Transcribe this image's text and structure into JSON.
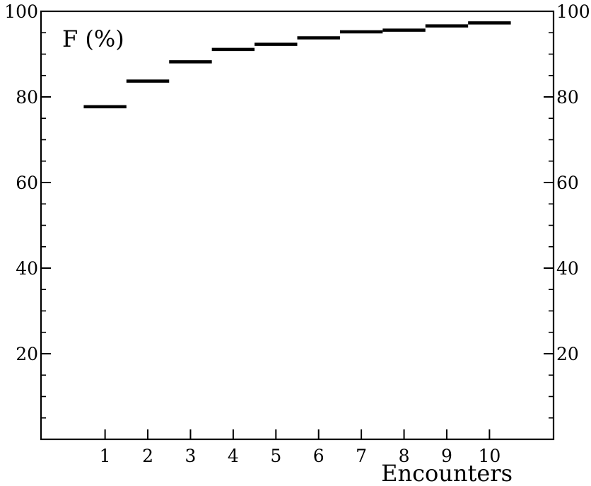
{
  "chart_data": {
    "type": "step",
    "ylabel": "F (%)",
    "xlabel": "Encounters",
    "xlim": [
      -0.5,
      11.5
    ],
    "ylim": [
      0,
      100
    ],
    "x_ticks": [
      1,
      2,
      3,
      4,
      5,
      6,
      7,
      8,
      9,
      10
    ],
    "y_ticks_left": [
      20,
      40,
      60,
      80,
      100
    ],
    "y_ticks_right": [
      20,
      40,
      60,
      80,
      100
    ],
    "grid": false,
    "series": [
      {
        "x": [
          1,
          2,
          3,
          4,
          5,
          6,
          7,
          8,
          9,
          10
        ],
        "values": [
          77.7,
          83.7,
          88.2,
          91.1,
          92.3,
          93.8,
          95.2,
          95.6,
          96.6,
          97.3
        ]
      }
    ]
  }
}
